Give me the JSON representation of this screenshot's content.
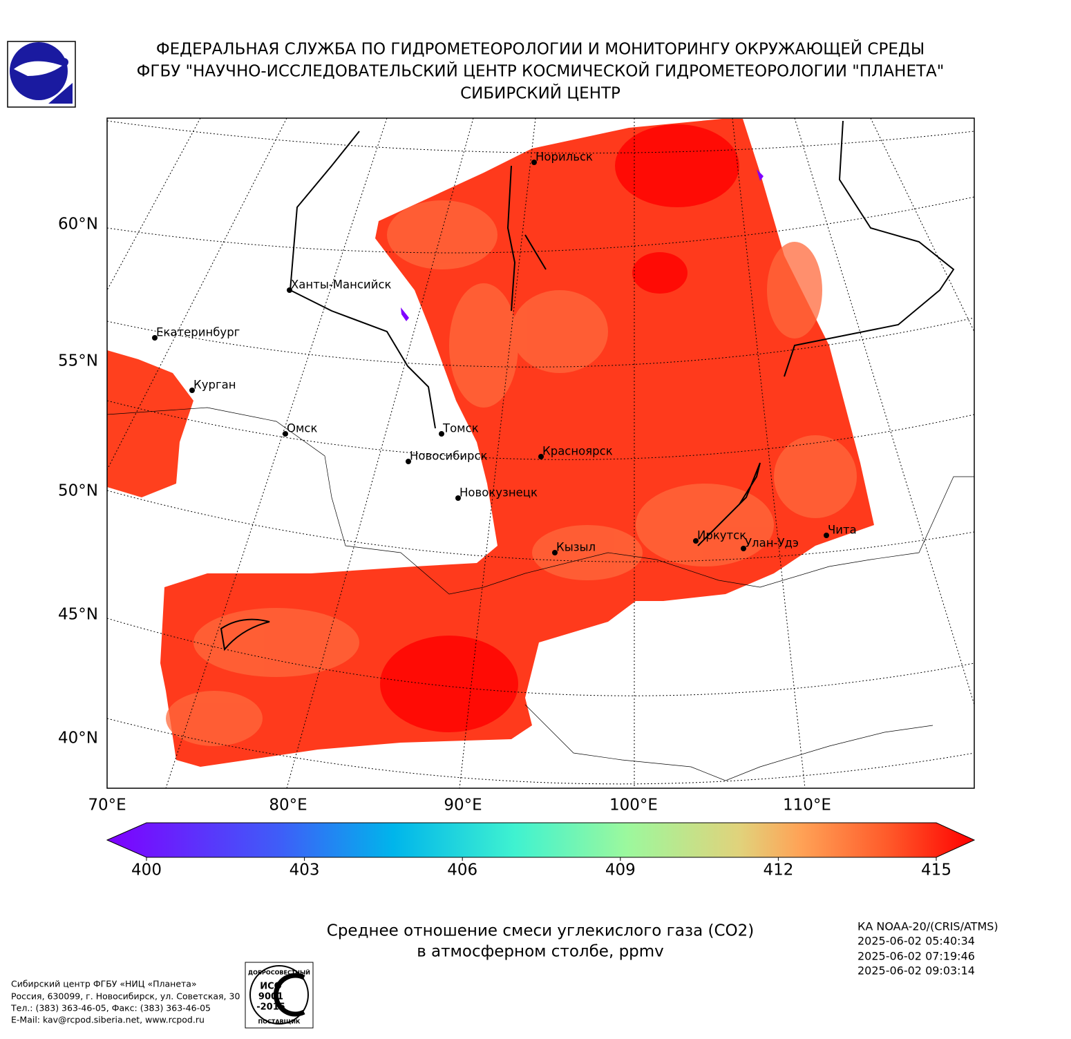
{
  "header": {
    "lines": [
      "ФЕДЕРАЛЬНАЯ СЛУЖБА ПО ГИДРОМЕТЕОРОЛОГИИ И МОНИТОРИНГУ ОКРУЖАЮЩЕЙ СРЕДЫ",
      "ФГБУ \"НАУЧНО-ИССЛЕДОВАТЕЛЬСКИЙ ЦЕНТР КОСМИЧЕСКОЙ ГИДРОМЕТЕОРОЛОГИИ \"ПЛАНЕТА\"",
      "СИБИРСКИЙ ЦЕНТР"
    ]
  },
  "map": {
    "lat_labels": [
      "60°N",
      "55°N",
      "50°N",
      "45°N",
      "40°N"
    ],
    "lon_labels": [
      "70°E",
      "80°E",
      "90°E",
      "100°E",
      "110°E"
    ],
    "cities": [
      "Норильск",
      "Ханты-Мансийск",
      "Екатеринбург",
      "Курган",
      "Омск",
      "Томск",
      "Новосибирск",
      "Красноярск",
      "Новокузнецк",
      "Иркутск",
      "Улан-Удэ",
      "Кызыл",
      "Чита"
    ]
  },
  "colorbar": {
    "lim": [
      400,
      415
    ],
    "ticks": [
      400,
      403,
      406,
      409,
      412,
      415
    ]
  },
  "caption": [
    "Среднее отношение смеси углекислого газа (CO2)",
    "в атмосферном столбе, ppmv"
  ],
  "satellite": [
    "КА NOAA-20/(CRIS/ATMS)",
    "2025-06-02 05:40:34",
    "2025-06-02 07:19:46",
    "2025-06-02 09:03:14"
  ],
  "footer": [
    "Сибирский центр ФГБУ «НИЦ «Планета»",
    "Россия, 630099, г. Новосибирск, ул. Советская, 30",
    "Тел.: (383) 363-46-05, Факс: (383) 363-46-05",
    "E-Mail: kav@rcpod.siberia.net, www.rcpod.ru"
  ],
  "iso": [
    "ДОБРОСОВЕСТНЫЙ",
    "ИСО",
    "9001",
    "-2015",
    "ПОСТАВЩИК"
  ]
}
